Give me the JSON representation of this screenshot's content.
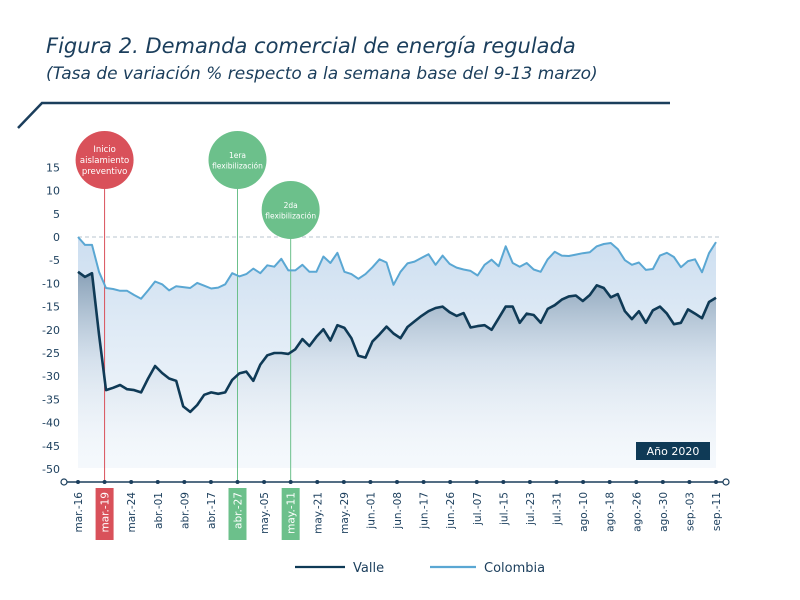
{
  "chart_data": {
    "type": "line",
    "title": "Figura 2. Demanda comercial de energía regulada",
    "subtitle": "(Tasa de variación % respecto a la semana base del 9-13 marzo)",
    "xlabel": "",
    "ylabel": "",
    "ylim": [
      -50,
      15
    ],
    "yticks": [
      15,
      10,
      5,
      0,
      -5,
      -10,
      -15,
      -20,
      -25,
      -30,
      -35,
      -40,
      -45,
      -50
    ],
    "x_tick_labels": [
      "mar.-16",
      "mar.-19",
      "mar.-24",
      "abr.-01",
      "abr.-09",
      "abr.-17",
      "abr.-27",
      "may.-05",
      "may.-11",
      "may.-21",
      "may.-29",
      "jun.-01",
      "jun.-08",
      "jun.-17",
      "jun.-26",
      "jul.-07",
      "jul.-15",
      "jul.-23",
      "jul.-31",
      "ago.-10",
      "ago.-18",
      "ago.-26",
      "ago.-30",
      "sep.-03",
      "sep.-11"
    ],
    "grid": false,
    "zero_line": "dashed",
    "legend_placement": "bottom",
    "badge": "Año 2020",
    "annotations": [
      {
        "label_lines": [
          "Inicio",
          "aislamiento",
          "preventivo"
        ],
        "tick": "mar.-19",
        "color": "#d9515a"
      },
      {
        "label_lines": [
          "1era",
          "flexibilización"
        ],
        "tick": "abr.-27",
        "color": "#6cc08b"
      },
      {
        "label_lines": [
          "2da",
          "flexibilización"
        ],
        "tick": "may.-11",
        "color": "#6cc08b"
      }
    ],
    "series": [
      {
        "name": "Valle",
        "color": "#0f3a56",
        "values": [
          -7.5,
          -8.6,
          -7.8,
          -21,
          -33,
          -32.5,
          -31.9,
          -32.8,
          -33,
          -33.5,
          -30.5,
          -27.8,
          -29.3,
          -30.5,
          -31,
          -36.5,
          -37.7,
          -36.2,
          -34,
          -33.5,
          -33.8,
          -33.5,
          -30.8,
          -29.4,
          -29,
          -31,
          -27.5,
          -25.5,
          -25,
          -25,
          -25.2,
          -24.2,
          -22,
          -23.5,
          -21.5,
          -19.9,
          -22.3,
          -19,
          -19.6,
          -21.8,
          -25.6,
          -26,
          -22.5,
          -21,
          -19.3,
          -20.8,
          -21.8,
          -19.4,
          -18.2,
          -17,
          -16,
          -15.3,
          -15,
          -16.2,
          -17,
          -16.4,
          -19.5,
          -19.2,
          -19,
          -20,
          -17.5,
          -15,
          -15,
          -18.5,
          -16.5,
          -16.8,
          -18.5,
          -15.5,
          -14.7,
          -13.5,
          -12.8,
          -12.6,
          -13.8,
          -12.5,
          -10.4,
          -11,
          -13,
          -12.3,
          -16,
          -17.7,
          -16,
          -18.5,
          -15.8,
          -15,
          -16.5,
          -18.8,
          -18.5,
          -15.6,
          -16.5,
          -17.5,
          -14,
          -13.1
        ]
      },
      {
        "name": "Colombia",
        "color": "#5aa7d3",
        "values": [
          0,
          -1.7,
          -1.7,
          -7.5,
          -11,
          -11.2,
          -11.6,
          -11.6,
          -12.5,
          -13.3,
          -11.5,
          -9.6,
          -10.2,
          -11.5,
          -10.6,
          -10.8,
          -11,
          -9.9,
          -10.5,
          -11.1,
          -10.9,
          -10.2,
          -7.8,
          -8.5,
          -8,
          -6.8,
          -7.8,
          -6.1,
          -6.4,
          -4.7,
          -7.2,
          -7.2,
          -6,
          -7.5,
          -7.5,
          -4.2,
          -5.6,
          -3.4,
          -7.5,
          -8,
          -9,
          -8,
          -6.5,
          -4.8,
          -5.5,
          -10.3,
          -7.5,
          -5.7,
          -5.3,
          -4.5,
          -3.7,
          -6,
          -4,
          -5.8,
          -6.6,
          -7,
          -7.3,
          -8.3,
          -6,
          -4.9,
          -6.3,
          -2,
          -5.6,
          -6.4,
          -5.6,
          -7,
          -7.5,
          -4.8,
          -3.2,
          -4,
          -4.1,
          -3.8,
          -3.5,
          -3.3,
          -2,
          -1.5,
          -1.3,
          -2.6,
          -5,
          -6,
          -5.5,
          -7.1,
          -6.9,
          -4,
          -3.4,
          -4.3,
          -6.5,
          -5.2,
          -4.8,
          -7.6,
          -3.5,
          -1.1
        ]
      }
    ]
  },
  "colors": {
    "title": "#1b3e5c",
    "axis": "#1b3e5c",
    "red_marker": "#d9515a",
    "green_marker": "#6cc08b"
  }
}
